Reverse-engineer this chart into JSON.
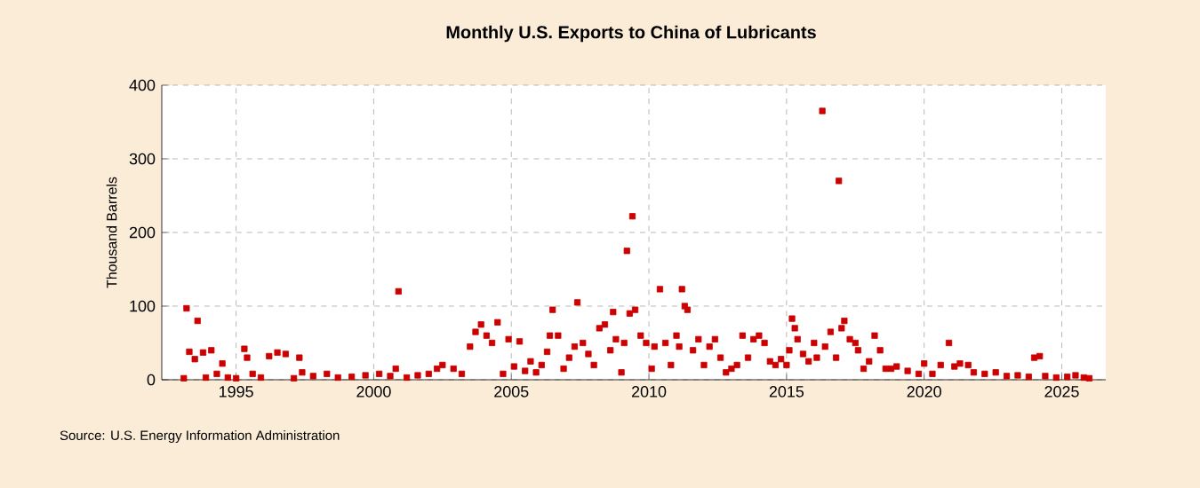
{
  "chart_data": {
    "type": "scatter",
    "title": "Monthly U.S. Exports to China of Lubricants",
    "ylabel": "Thousand Barrels",
    "annotations": [
      "Source: U.S. Energy Information Administration"
    ],
    "xlim": [
      1992.3,
      2026.6
    ],
    "xticks": [
      1995,
      2000,
      2005,
      2010,
      2015,
      2020,
      2025
    ],
    "ylim": [
      0,
      400
    ],
    "yticks": [
      0,
      100,
      200,
      300,
      400
    ],
    "grid": true,
    "marker": "square",
    "series": [
      {
        "color": "#cc0000",
        "x": [
          1993.1,
          1993.2,
          1993.3,
          1993.5,
          1993.6,
          1993.8,
          1993.9,
          1994.1,
          1994.3,
          1994.5,
          1994.7,
          1995.0,
          1995.3,
          1995.4,
          1995.6,
          1995.9,
          1996.2,
          1996.5,
          1996.8,
          1997.1,
          1997.3,
          1997.4,
          1997.8,
          1998.3,
          1998.7,
          1999.2,
          1999.7,
          2000.2,
          2000.6,
          2000.8,
          2000.9,
          2001.2,
          2001.6,
          2002.0,
          2002.3,
          2002.5,
          2002.9,
          2003.2,
          2003.5,
          2003.7,
          2003.9,
          2004.1,
          2004.3,
          2004.5,
          2004.7,
          2004.9,
          2005.1,
          2005.3,
          2005.5,
          2005.7,
          2005.9,
          2006.1,
          2006.3,
          2006.4,
          2006.5,
          2006.7,
          2006.9,
          2007.1,
          2007.3,
          2007.4,
          2007.6,
          2007.8,
          2008.0,
          2008.2,
          2008.4,
          2008.6,
          2008.7,
          2008.8,
          2009.0,
          2009.1,
          2009.2,
          2009.3,
          2009.4,
          2009.5,
          2009.7,
          2009.9,
          2010.1,
          2010.2,
          2010.4,
          2010.6,
          2010.8,
          2011.0,
          2011.1,
          2011.2,
          2011.3,
          2011.4,
          2011.6,
          2011.8,
          2012.0,
          2012.2,
          2012.4,
          2012.6,
          2012.8,
          2013.0,
          2013.2,
          2013.4,
          2013.6,
          2013.8,
          2014.0,
          2014.2,
          2014.4,
          2014.6,
          2014.8,
          2015.0,
          2015.1,
          2015.2,
          2015.3,
          2015.4,
          2015.6,
          2015.8,
          2016.0,
          2016.1,
          2016.3,
          2016.4,
          2016.6,
          2016.8,
          2016.9,
          2017.0,
          2017.1,
          2017.3,
          2017.5,
          2017.6,
          2017.8,
          2018.0,
          2018.2,
          2018.4,
          2018.6,
          2018.8,
          2019.0,
          2019.4,
          2019.8,
          2020.0,
          2020.3,
          2020.6,
          2020.9,
          2021.1,
          2021.3,
          2021.6,
          2021.8,
          2022.2,
          2022.6,
          2023.0,
          2023.4,
          2023.8,
          2024.0,
          2024.2,
          2024.4,
          2024.8,
          2025.2,
          2025.5,
          2025.8,
          2026.0
        ],
        "values": [
          2,
          97,
          38,
          28,
          80,
          37,
          3,
          40,
          8,
          22,
          3,
          2,
          42,
          30,
          8,
          3,
          32,
          37,
          35,
          2,
          30,
          10,
          5,
          8,
          3,
          4,
          6,
          8,
          5,
          15,
          120,
          3,
          6,
          8,
          15,
          20,
          15,
          8,
          45,
          65,
          75,
          60,
          50,
          78,
          8,
          55,
          18,
          52,
          12,
          25,
          10,
          20,
          38,
          60,
          95,
          60,
          15,
          30,
          45,
          105,
          50,
          35,
          20,
          70,
          75,
          40,
          92,
          55,
          10,
          50,
          175,
          90,
          222,
          95,
          60,
          50,
          15,
          45,
          123,
          50,
          20,
          60,
          45,
          123,
          100,
          95,
          40,
          55,
          20,
          45,
          55,
          30,
          10,
          15,
          20,
          60,
          30,
          55,
          60,
          50,
          25,
          20,
          28,
          20,
          40,
          83,
          70,
          55,
          35,
          25,
          50,
          30,
          365,
          45,
          65,
          30,
          270,
          70,
          80,
          55,
          50,
          40,
          15,
          25,
          60,
          40,
          15,
          15,
          18,
          12,
          8,
          22,
          8,
          20,
          50,
          18,
          22,
          20,
          10,
          8,
          10,
          5,
          6,
          4,
          30,
          32,
          5,
          3,
          4,
          6,
          3,
          2
        ]
      }
    ]
  }
}
